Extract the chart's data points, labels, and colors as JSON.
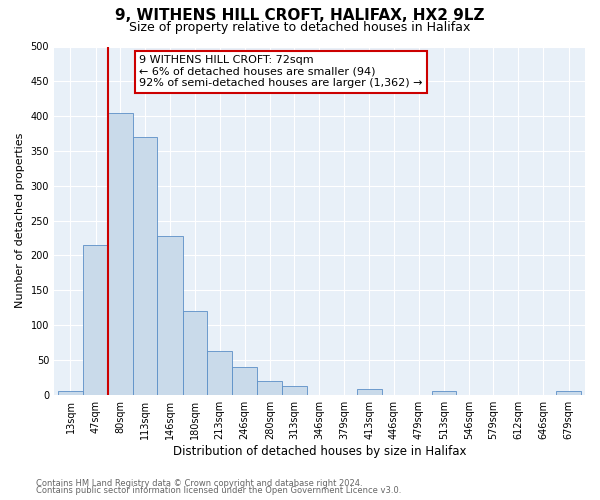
{
  "title": "9, WITHENS HILL CROFT, HALIFAX, HX2 9LZ",
  "subtitle": "Size of property relative to detached houses in Halifax",
  "xlabel": "Distribution of detached houses by size in Halifax",
  "ylabel": "Number of detached properties",
  "bin_labels": [
    "13sqm",
    "47sqm",
    "80sqm",
    "113sqm",
    "146sqm",
    "180sqm",
    "213sqm",
    "246sqm",
    "280sqm",
    "313sqm",
    "346sqm",
    "379sqm",
    "413sqm",
    "446sqm",
    "479sqm",
    "513sqm",
    "546sqm",
    "579sqm",
    "612sqm",
    "646sqm",
    "679sqm"
  ],
  "bin_left_edges": [
    13,
    47,
    80,
    113,
    146,
    180,
    213,
    246,
    280,
    313,
    346,
    379,
    413,
    446,
    479,
    513,
    546,
    579,
    612,
    646,
    679
  ],
  "bar_heights": [
    5,
    215,
    405,
    370,
    228,
    120,
    63,
    40,
    20,
    13,
    0,
    0,
    8,
    0,
    0,
    6,
    0,
    0,
    0,
    0,
    5
  ],
  "bar_color": "#c9daea",
  "bar_edge_color": "#5b8fc7",
  "vline_x": 80,
  "vline_color": "#cc0000",
  "annotation_line1": "9 WITHENS HILL CROFT: 72sqm",
  "annotation_line2": "← 6% of detached houses are smaller (94)",
  "annotation_line3": "92% of semi-detached houses are larger (1,362) →",
  "annotation_box_color": "#ffffff",
  "annotation_box_edge": "#cc0000",
  "ylim": [
    0,
    500
  ],
  "yticks": [
    0,
    50,
    100,
    150,
    200,
    250,
    300,
    350,
    400,
    450,
    500
  ],
  "background_color": "#dce8f5",
  "plot_area_color": "#e8f0f8",
  "footer_line1": "Contains HM Land Registry data © Crown copyright and database right 2024.",
  "footer_line2": "Contains public sector information licensed under the Open Government Licence v3.0.",
  "title_fontsize": 11,
  "subtitle_fontsize": 9,
  "xlabel_fontsize": 8.5,
  "ylabel_fontsize": 8,
  "tick_fontsize": 7,
  "annotation_fontsize": 8,
  "footer_fontsize": 6
}
